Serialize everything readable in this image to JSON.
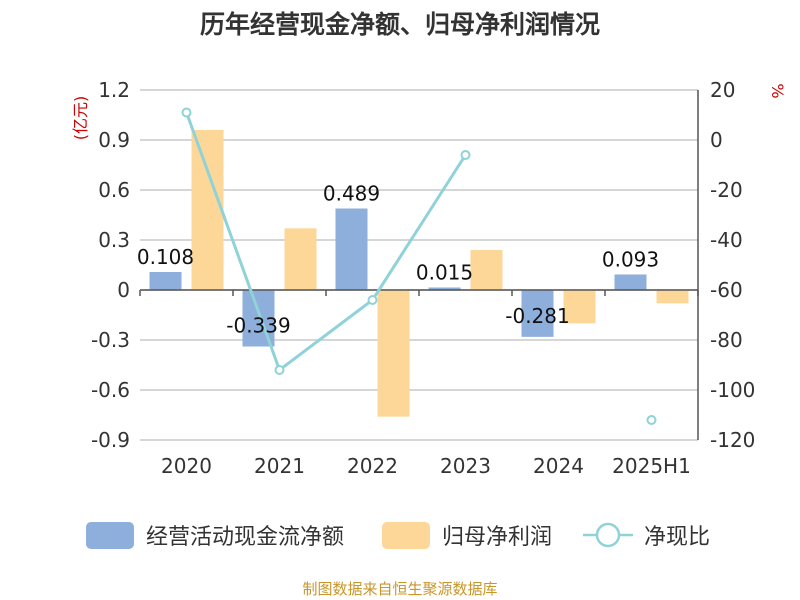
{
  "chart_data": {
    "type": "bar",
    "title": "历年经营现金净额、归母净利润情况",
    "categories": [
      "2020",
      "2021",
      "2022",
      "2023",
      "2024",
      "2025H1"
    ],
    "left_axis": {
      "unit_label": "(亿元)",
      "ylim": [
        -0.9,
        1.2
      ],
      "ticks": [
        1.2,
        0.9,
        0.6,
        0.3,
        0,
        -0.3,
        -0.6,
        -0.9
      ],
      "tick_labels": [
        "1.2",
        "0.9",
        "0.6",
        "0.3",
        "0",
        "-0.3",
        "-0.6",
        "-0.9"
      ]
    },
    "right_axis": {
      "unit_label": "%",
      "ylim": [
        -120,
        20
      ],
      "ticks": [
        20,
        0,
        -20,
        -40,
        -60,
        -80,
        -100,
        -120
      ],
      "tick_labels": [
        "20",
        "0",
        "-20",
        "-40",
        "-60",
        "-80",
        "-100",
        "-120"
      ]
    },
    "series": [
      {
        "name": "经营活动现金流净额",
        "type": "bar",
        "axis": "left",
        "color": "#8eaedb",
        "values": [
          0.108,
          -0.339,
          0.489,
          0.015,
          -0.281,
          0.093
        ],
        "labels": [
          "0.108",
          "-0.339",
          "0.489",
          "0.015",
          "-0.281",
          "0.093"
        ]
      },
      {
        "name": "归母净利润",
        "type": "bar",
        "axis": "left",
        "color": "#fdd797",
        "values": [
          0.96,
          0.37,
          -0.76,
          0.24,
          -0.2,
          -0.08
        ]
      },
      {
        "name": "净现比",
        "type": "line",
        "axis": "right",
        "color": "#8fd3d8",
        "values": [
          11,
          -92,
          -64,
          -6,
          null,
          -112
        ]
      }
    ],
    "grid": true,
    "legend_position": "bottom"
  },
  "source_text": "制图数据来自恒生聚源数据库"
}
